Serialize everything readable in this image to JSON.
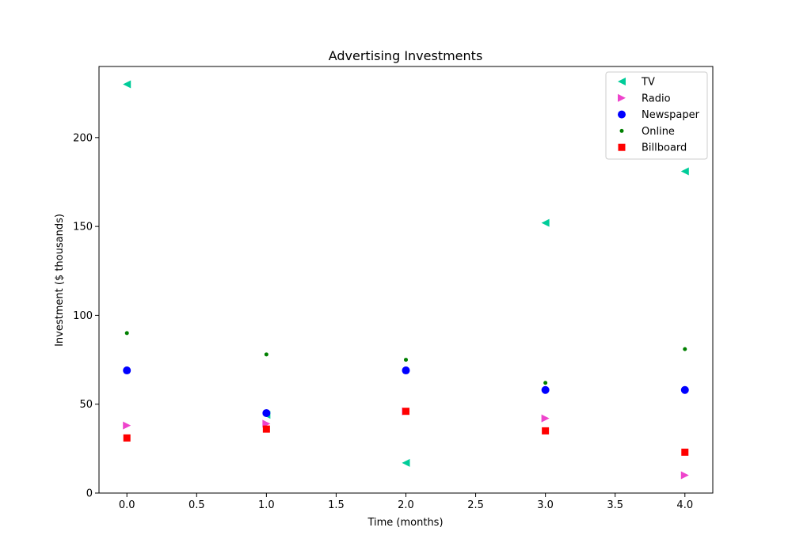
{
  "chart_data": {
    "type": "scatter",
    "title": "Advertising Investments",
    "xlabel": "Time (months)",
    "ylabel": "Investment ($ thousands)",
    "xlim": [
      -0.2,
      4.2
    ],
    "ylim": [
      0,
      240
    ],
    "xticks": [
      0.0,
      0.5,
      1.0,
      1.5,
      2.0,
      2.5,
      3.0,
      3.5,
      4.0
    ],
    "xtick_labels": [
      "0.0",
      "0.5",
      "1.0",
      "1.5",
      "2.0",
      "2.5",
      "3.0",
      "3.5",
      "4.0"
    ],
    "yticks": [
      0,
      50,
      100,
      150,
      200
    ],
    "ytick_labels": [
      "0",
      "50",
      "100",
      "150",
      "200"
    ],
    "grid": false,
    "legend_position": "top-right",
    "x": [
      0,
      1,
      2,
      3,
      4
    ],
    "series": [
      {
        "name": "TV",
        "marker": "triangle-left",
        "color": "#00cc99",
        "values": [
          230,
          44,
          17,
          152,
          181
        ]
      },
      {
        "name": "Radio",
        "marker": "triangle-right",
        "color": "#ee44cc",
        "values": [
          38,
          39,
          46,
          42,
          10
        ]
      },
      {
        "name": "Newspaper",
        "marker": "circle",
        "color": "#0000ff",
        "values": [
          69,
          45,
          69,
          58,
          58
        ]
      },
      {
        "name": "Online",
        "marker": "small-dot",
        "color": "#008000",
        "values": [
          90,
          78,
          75,
          62,
          81
        ]
      },
      {
        "name": "Billboard",
        "marker": "square",
        "color": "#ff0000",
        "values": [
          31,
          36,
          46,
          35,
          23
        ]
      }
    ]
  }
}
